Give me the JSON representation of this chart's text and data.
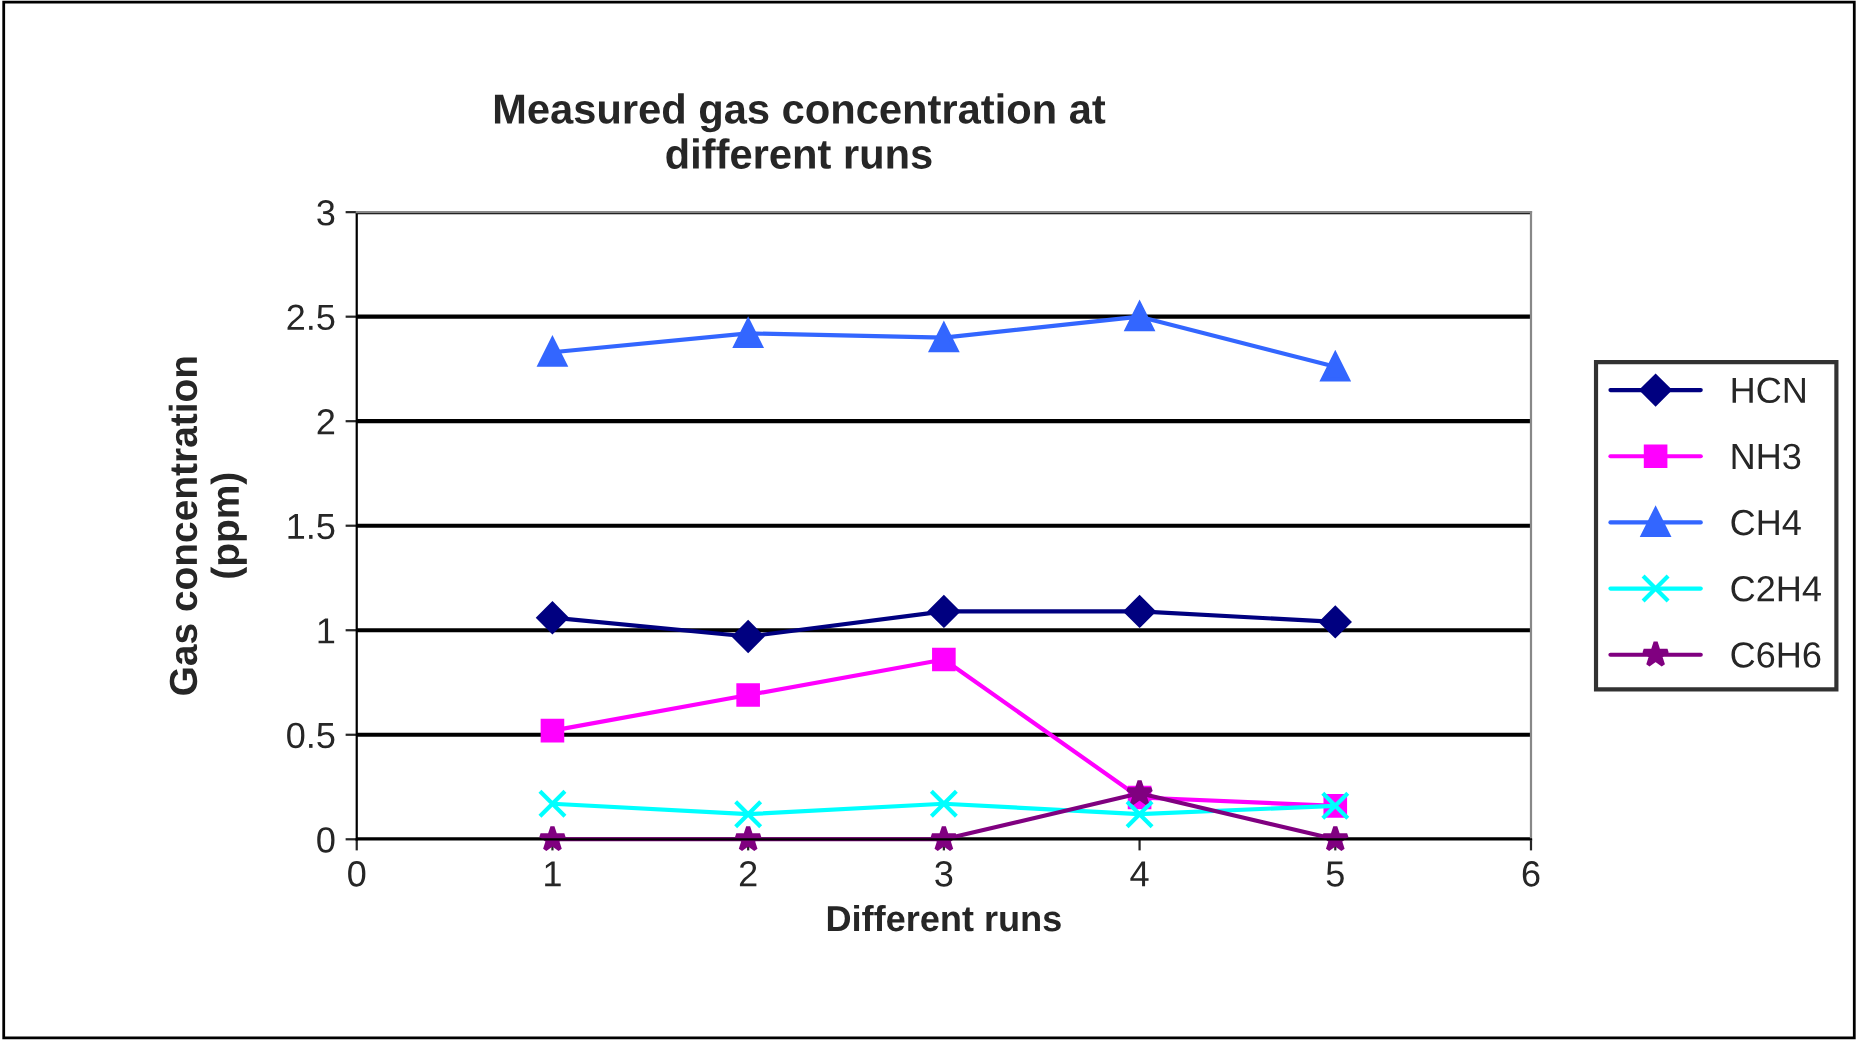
{
  "chart_data": {
    "type": "line",
    "title": "Measured gas concentration at\ndifferent runs",
    "xlabel": "Different runs",
    "ylabel": "Gas concentration\n(ppm)",
    "x": [
      1,
      2,
      3,
      4,
      5
    ],
    "series": [
      {
        "name": "HCN",
        "color": "#000080",
        "marker": "diamond",
        "values": [
          1.06,
          0.97,
          1.09,
          1.09,
          1.04
        ]
      },
      {
        "name": "NH3",
        "color": "#ff00ff",
        "marker": "square",
        "values": [
          0.52,
          0.69,
          0.86,
          0.2,
          0.16
        ]
      },
      {
        "name": "CH4",
        "color": "#3366ff",
        "marker": "triangle",
        "values": [
          2.33,
          2.42,
          2.4,
          2.5,
          2.26
        ]
      },
      {
        "name": "C2H4",
        "color": "#00ffff",
        "marker": "cross",
        "values": [
          0.17,
          0.12,
          0.17,
          0.12,
          0.16
        ]
      },
      {
        "name": "C6H6",
        "color": "#800080",
        "marker": "star",
        "values": [
          0,
          0,
          0,
          0.22,
          0
        ]
      }
    ],
    "xlim": [
      0,
      6
    ],
    "xticks": [
      0,
      1,
      2,
      3,
      4,
      5,
      6
    ],
    "ylim": [
      0,
      3
    ],
    "yticks": [
      0,
      0.5,
      1,
      1.5,
      2,
      2.5,
      3
    ],
    "grid": "y",
    "legend": "right"
  }
}
